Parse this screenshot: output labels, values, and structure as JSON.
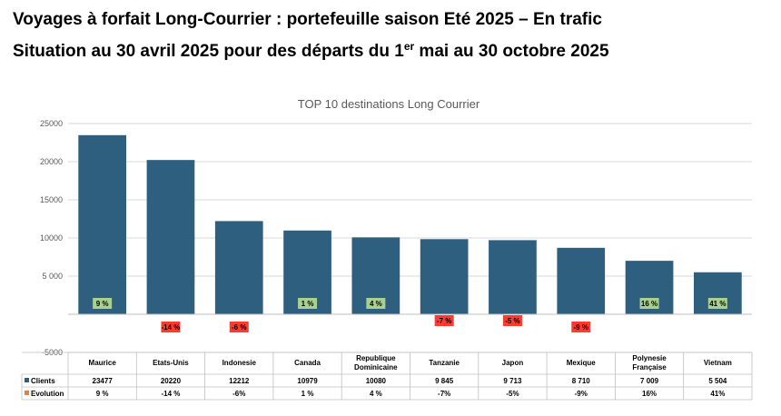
{
  "header": {
    "title": "Voyages à forfait Long-Courrier : portefeuille saison Eté 2025 – En trafic",
    "subtitle_before": "Situation au 30 avril 2025 pour des départs du 1",
    "subtitle_sup": "er",
    "subtitle_after": " mai au 30 octobre 2025"
  },
  "colors": {
    "bar": "#2e5f7f",
    "positive_label": "#a9d18e",
    "negative_label": "#ff3b30",
    "evolution_legend": "#ed7d31",
    "grid": "#d9d9d9"
  },
  "chart_data": {
    "type": "bar",
    "title": "TOP 10 destinations Long Courrier",
    "categories": [
      "Maurice",
      "Etats-Unis",
      "Indonesie",
      "Canada",
      "Republique Dominicaine",
      "Tanzanie",
      "Japon",
      "Mexique",
      "Polynesie Française",
      "Vietnam"
    ],
    "series": [
      {
        "name": "Clients",
        "values": [
          23477,
          20220,
          12212,
          10979,
          10080,
          9845,
          9713,
          8710,
          7009,
          5504
        ],
        "display": [
          "23477",
          "20220",
          "12212",
          "10979",
          "10080",
          "9 845",
          "9 713",
          "8 710",
          "7 009",
          "5 504"
        ]
      },
      {
        "name": "Evolution",
        "values": [
          9,
          -14,
          -6,
          1,
          4,
          -7,
          -5,
          -9,
          16,
          41
        ],
        "display": [
          "9 %",
          "-14 %",
          "-6%",
          "1 %",
          "4 %",
          "-7%",
          "-5%",
          "-9%",
          "16%",
          "41%"
        ]
      }
    ],
    "data_labels": [
      "9 %",
      "-14 %",
      "-6 %",
      "1 %",
      "4 %",
      "-7 %",
      "-5 %",
      "-9 %",
      "16 %",
      "41 %"
    ],
    "yticks": [
      "25000",
      "20000",
      "15000",
      "10000",
      "5 000",
      "",
      "-5000"
    ],
    "ylim": [
      -5000,
      25000
    ],
    "grid": true,
    "legend": "data-table"
  }
}
